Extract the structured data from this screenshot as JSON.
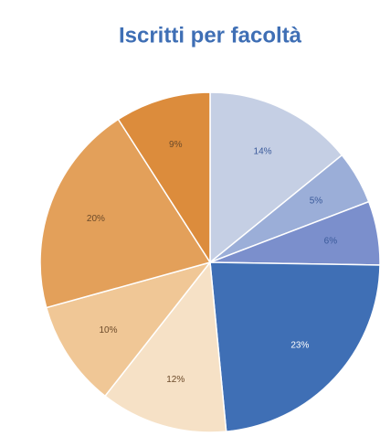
{
  "chart_data": {
    "type": "pie",
    "title": "Iscritti per facoltà",
    "values": [
      14,
      5,
      6,
      23,
      12,
      10,
      20,
      9
    ],
    "value_labels": [
      "14%",
      "5%",
      "6%",
      "23%",
      "12%",
      "10%",
      "20%",
      "9%"
    ],
    "colors": [
      "#c5cfe4",
      "#9baed8",
      "#7b8fcc",
      "#3f6fb5",
      "#f6e1c6",
      "#f0c796",
      "#e3a05a",
      "#dc8c3c"
    ]
  }
}
